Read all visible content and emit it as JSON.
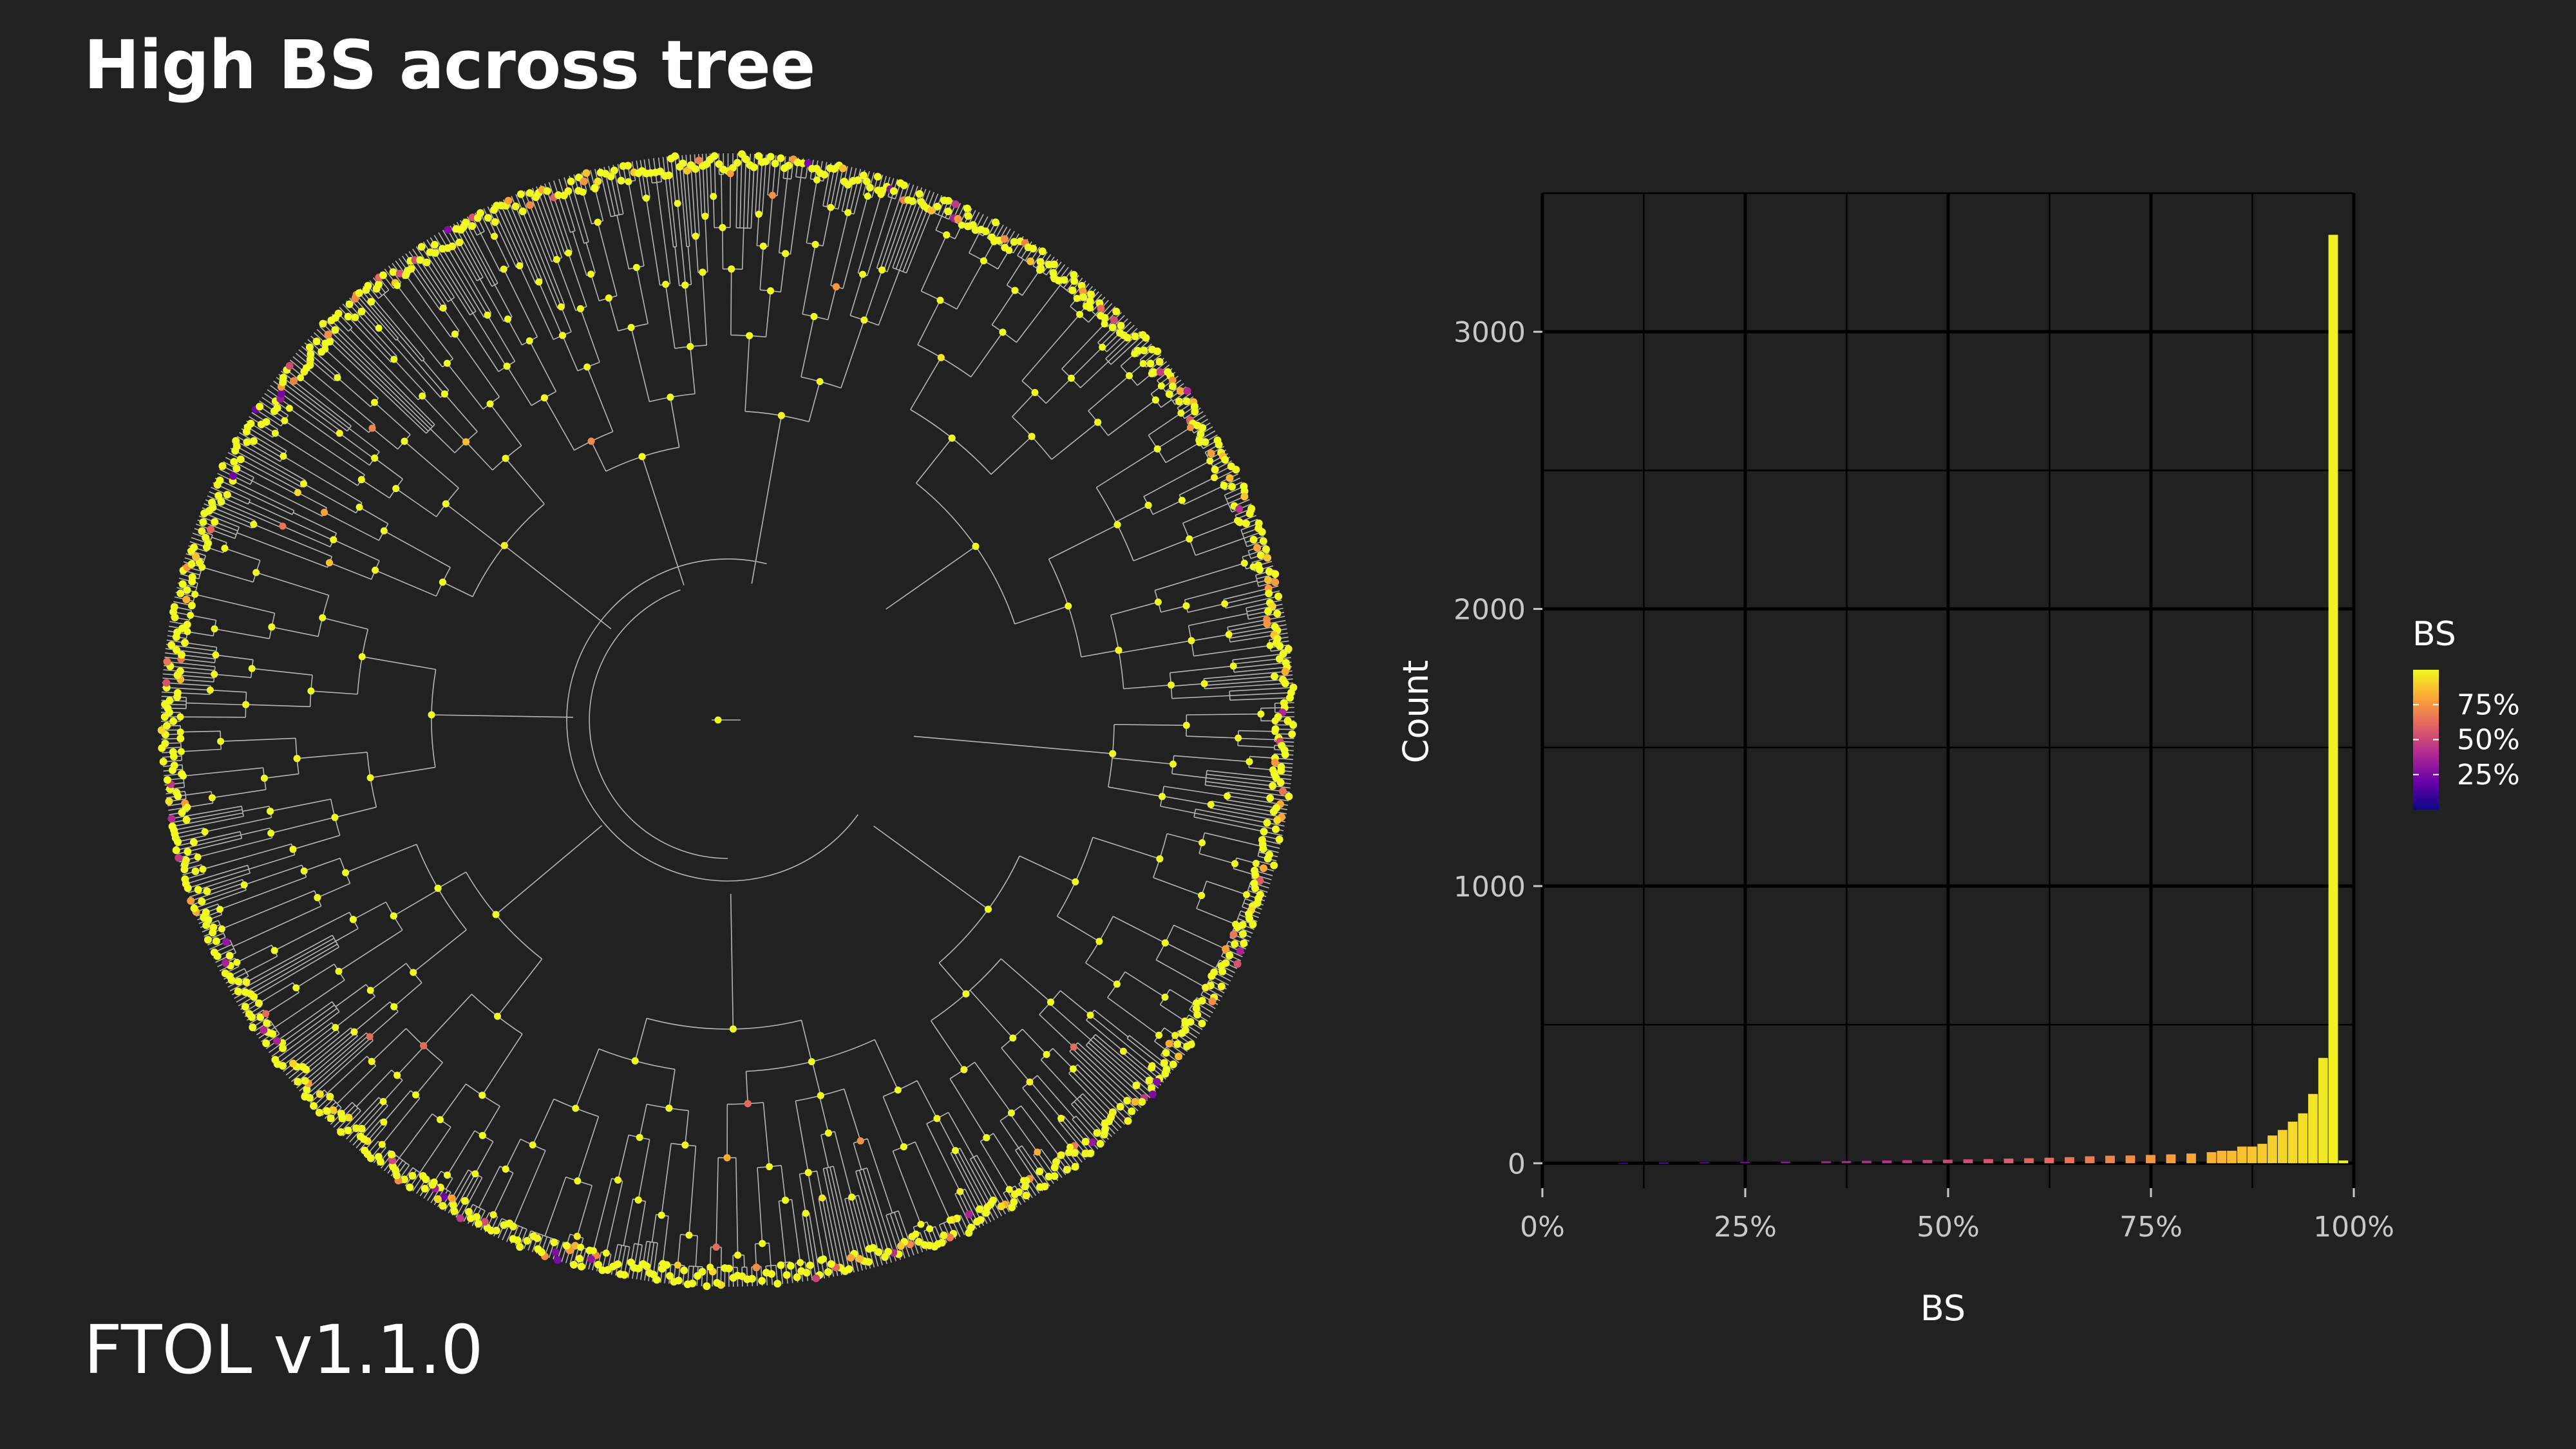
{
  "title": "High BS across tree",
  "footer": "FTOL v1.1.0",
  "colors": {
    "background": "#212121",
    "gridline": "#000000",
    "branch": "#cfcfcf",
    "text_axis": "#c8c8c8",
    "text_title": "#ffffff",
    "palette": [
      "#0d0887",
      "#6a00a8",
      "#b12a90",
      "#e16462",
      "#fca636",
      "#f0f921"
    ]
  },
  "tree": {
    "description_role": "circular phylogeny, node points coloured by BS",
    "point_color_scale": "BS"
  },
  "chart_data": {
    "type": "bar",
    "subtype": "histogram",
    "title": "",
    "xlabel": "BS",
    "ylabel": "Count",
    "xlim": [
      0,
      100
    ],
    "ylim": [
      -90,
      3500
    ],
    "x_ticks": [
      0,
      25,
      50,
      75,
      100
    ],
    "x_tick_labels": [
      "0%",
      "25%",
      "50%",
      "75%",
      "100%"
    ],
    "y_ticks": [
      0,
      1000,
      2000,
      3000
    ],
    "y_tick_labels": [
      "0",
      "1000",
      "2000",
      "3000"
    ],
    "grid": true,
    "bin_width": 1.25,
    "bin_centers": [
      10,
      15,
      20,
      25,
      30,
      35,
      37.5,
      40,
      42.5,
      45,
      47.5,
      50,
      52.5,
      55,
      57.5,
      60,
      62.5,
      65,
      67.5,
      70,
      72.5,
      75,
      77.5,
      80,
      82.5,
      83.75,
      85,
      86.25,
      87.5,
      88.75,
      90,
      91.25,
      92.5,
      93.75,
      95,
      96.25,
      97.5,
      98.75
    ],
    "values": [
      2,
      3,
      4,
      5,
      6,
      7,
      8,
      9,
      10,
      11,
      12,
      13,
      14,
      15,
      17,
      18,
      20,
      22,
      25,
      27,
      28,
      30,
      32,
      35,
      40,
      45,
      45,
      60,
      60,
      70,
      100,
      120,
      150,
      180,
      250,
      380,
      3350,
      10
    ],
    "legend": {
      "title": "BS",
      "type": "colorbar",
      "placement": "right",
      "labels": [
        "75%",
        "50%",
        "25%"
      ],
      "label_values": [
        75,
        50,
        25
      ]
    }
  }
}
